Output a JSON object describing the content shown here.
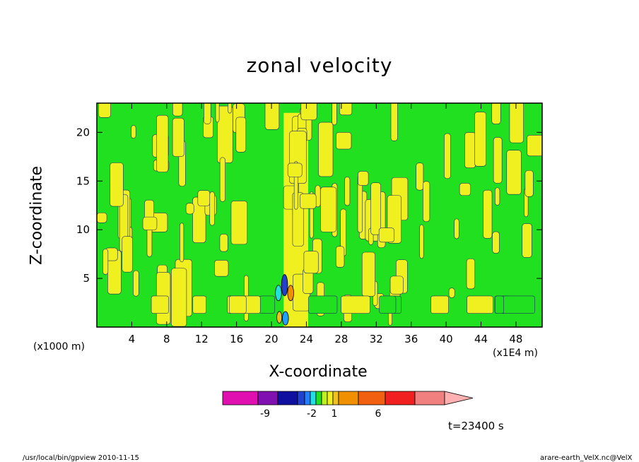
{
  "chart_data": {
    "type": "heatmap",
    "title": "zonal velocity",
    "xlabel": "X-coordinate",
    "ylabel": "Z-coordinate",
    "x_unit": "(x1E4 m)",
    "y_unit": "(x1000 m)",
    "x_ticks": [
      "4",
      "8",
      "12",
      "16",
      "20",
      "24",
      "28",
      "32",
      "36",
      "40",
      "44",
      "48"
    ],
    "y_ticks": [
      "5",
      "10",
      "15",
      "20"
    ],
    "xlim": [
      0,
      51
    ],
    "ylim": [
      0,
      23
    ],
    "colorbar": {
      "colors": [
        "#e010b0",
        "#8010b0",
        "#1010a0",
        "#2040d0",
        "#2080ff",
        "#20e0e0",
        "#20e020",
        "#c0f020",
        "#f0f020",
        "#f0c020",
        "#f09000",
        "#f06010",
        "#f02020",
        "#f08080",
        "#ffb0b0"
      ],
      "labels": [
        "-9",
        "-2",
        "1",
        "6"
      ]
    },
    "time_label": "t=23400 s"
  },
  "footer": {
    "left": "/usr/local/bin/gpview   2010-11-15",
    "right": "arare-earth_VelX.nc@VelX"
  }
}
